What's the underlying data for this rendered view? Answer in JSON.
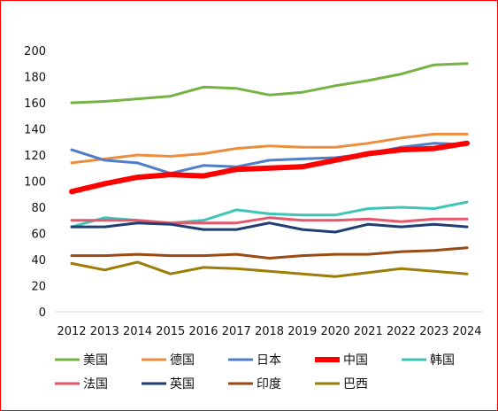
{
  "chart_data": {
    "type": "line",
    "title": "",
    "xlabel": "",
    "ylabel": "",
    "x": [
      "2012",
      "2013",
      "2014",
      "2015",
      "2016",
      "2017",
      "2018",
      "2019",
      "2020",
      "2021",
      "2022",
      "2023",
      "2024"
    ],
    "ylim": [
      0,
      200
    ],
    "yticks": [
      0,
      20,
      40,
      60,
      80,
      100,
      120,
      140,
      160,
      180,
      200
    ],
    "grid": false,
    "legend_position": "bottom",
    "series": [
      {
        "name": "美国",
        "color": "#77b244",
        "emphasis": false,
        "values": [
          160,
          161,
          163,
          165,
          172,
          171,
          166,
          168,
          173,
          177,
          182,
          189,
          190
        ]
      },
      {
        "name": "德国",
        "color": "#ed8d3e",
        "emphasis": false,
        "values": [
          114,
          117,
          120,
          119,
          121,
          125,
          127,
          126,
          126,
          129,
          133,
          136,
          136
        ]
      },
      {
        "name": "日本",
        "color": "#4f7ec8",
        "emphasis": false,
        "values": [
          124,
          116,
          114,
          106,
          112,
          111,
          116,
          117,
          118,
          121,
          126,
          129,
          128
        ]
      },
      {
        "name": "中国",
        "color": "#ff0000",
        "emphasis": true,
        "values": [
          92,
          98,
          103,
          105,
          104,
          109,
          110,
          111,
          116,
          121,
          124,
          125,
          129
        ]
      },
      {
        "name": "韩国",
        "color": "#3ec5b8",
        "emphasis": false,
        "values": [
          65,
          72,
          70,
          68,
          70,
          78,
          75,
          74,
          74,
          79,
          80,
          79,
          84
        ]
      },
      {
        "name": "法国",
        "color": "#e7576b",
        "emphasis": false,
        "values": [
          70,
          70,
          70,
          68,
          68,
          68,
          72,
          70,
          70,
          71,
          69,
          71,
          71
        ]
      },
      {
        "name": "英国",
        "color": "#1f3e74",
        "emphasis": false,
        "values": [
          65,
          65,
          68,
          67,
          63,
          63,
          68,
          63,
          61,
          67,
          65,
          67,
          65
        ]
      },
      {
        "name": "印度",
        "color": "#9a4a12",
        "emphasis": false,
        "values": [
          43,
          43,
          44,
          43,
          43,
          44,
          41,
          43,
          44,
          44,
          46,
          47,
          49
        ]
      },
      {
        "name": "巴西",
        "color": "#9c7d07",
        "emphasis": false,
        "values": [
          37,
          32,
          38,
          29,
          34,
          33,
          31,
          29,
          27,
          30,
          33,
          31,
          29
        ]
      }
    ]
  }
}
